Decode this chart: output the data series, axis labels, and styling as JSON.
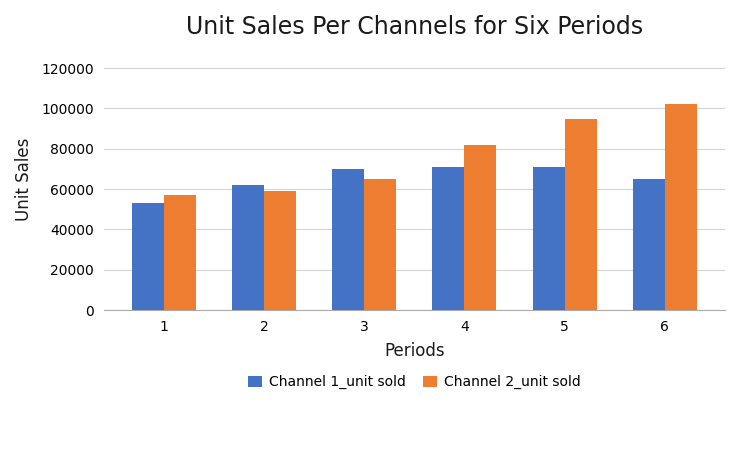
{
  "title": "Unit Sales Per Channels for Six Periods",
  "xlabel": "Periods",
  "ylabel": "Unit Sales",
  "periods": [
    1,
    2,
    3,
    4,
    5,
    6
  ],
  "channel1": [
    53000,
    62000,
    70000,
    71000,
    71000,
    65000
  ],
  "channel2": [
    57000,
    59000,
    65000,
    82000,
    95000,
    102000
  ],
  "channel1_color": "#4472C4",
  "channel2_color": "#ED7D31",
  "channel1_label": "Channel 1_unit sold",
  "channel2_label": "Channel 2_unit sold",
  "ylim": [
    0,
    130000
  ],
  "yticks": [
    0,
    20000,
    40000,
    60000,
    80000,
    100000,
    120000
  ],
  "ytick_labels": [
    "0",
    "20000",
    "40000",
    "60000",
    "80000",
    "100000",
    "120000"
  ],
  "bar_width": 0.32,
  "background_color": "#ffffff",
  "grid_color": "#d3d3d3",
  "title_fontsize": 17,
  "axis_label_fontsize": 12,
  "tick_fontsize": 10,
  "legend_fontsize": 10
}
